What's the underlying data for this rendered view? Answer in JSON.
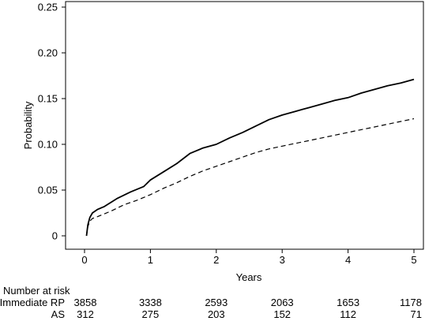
{
  "chart_data": {
    "type": "line",
    "xlabel": "Years",
    "ylabel": "Probability",
    "xlim": [
      0,
      5
    ],
    "ylim": [
      0,
      0.25
    ],
    "x_ticks": [
      "0",
      "1",
      "2",
      "3",
      "4",
      "5"
    ],
    "y_ticks": [
      "0",
      "0.05",
      "0.10",
      "0.15",
      "0.20",
      "0.25"
    ],
    "grid": false,
    "series": [
      {
        "style": "solid",
        "points": [
          [
            0.03,
            0.0
          ],
          [
            0.05,
            0.012
          ],
          [
            0.08,
            0.02
          ],
          [
            0.12,
            0.025
          ],
          [
            0.2,
            0.029
          ],
          [
            0.3,
            0.032
          ],
          [
            0.5,
            0.041
          ],
          [
            0.7,
            0.048
          ],
          [
            0.9,
            0.054
          ],
          [
            1.0,
            0.061
          ],
          [
            1.2,
            0.07
          ],
          [
            1.4,
            0.079
          ],
          [
            1.6,
            0.09
          ],
          [
            1.8,
            0.096
          ],
          [
            2.0,
            0.1
          ],
          [
            2.2,
            0.107
          ],
          [
            2.4,
            0.113
          ],
          [
            2.6,
            0.12
          ],
          [
            2.8,
            0.127
          ],
          [
            3.0,
            0.132
          ],
          [
            3.2,
            0.136
          ],
          [
            3.4,
            0.14
          ],
          [
            3.6,
            0.144
          ],
          [
            3.8,
            0.148
          ],
          [
            4.0,
            0.151
          ],
          [
            4.2,
            0.156
          ],
          [
            4.4,
            0.16
          ],
          [
            4.6,
            0.164
          ],
          [
            4.8,
            0.167
          ],
          [
            5.0,
            0.171
          ]
        ]
      },
      {
        "style": "dashed",
        "points": [
          [
            0.03,
            0.0
          ],
          [
            0.05,
            0.01
          ],
          [
            0.08,
            0.016
          ],
          [
            0.12,
            0.019
          ],
          [
            0.2,
            0.021
          ],
          [
            0.4,
            0.027
          ],
          [
            0.6,
            0.034
          ],
          [
            0.8,
            0.039
          ],
          [
            1.0,
            0.045
          ],
          [
            1.2,
            0.052
          ],
          [
            1.4,
            0.058
          ],
          [
            1.6,
            0.065
          ],
          [
            1.8,
            0.071
          ],
          [
            2.0,
            0.076
          ],
          [
            2.2,
            0.081
          ],
          [
            2.4,
            0.086
          ],
          [
            2.6,
            0.091
          ],
          [
            2.8,
            0.095
          ],
          [
            3.0,
            0.098
          ],
          [
            3.2,
            0.101
          ],
          [
            3.4,
            0.104
          ],
          [
            3.6,
            0.107
          ],
          [
            3.8,
            0.11
          ],
          [
            4.0,
            0.113
          ],
          [
            4.2,
            0.116
          ],
          [
            4.4,
            0.119
          ],
          [
            4.6,
            0.122
          ],
          [
            4.8,
            0.125
          ],
          [
            5.0,
            0.128
          ]
        ]
      }
    ],
    "risk_table": {
      "title": "Number at risk",
      "rows": [
        {
          "label": "Immediate RP",
          "values": [
            "3858",
            "3338",
            "2593",
            "2063",
            "1653",
            "1178"
          ]
        },
        {
          "label": "AS",
          "values": [
            "312",
            "275",
            "203",
            "152",
            "112",
            "71"
          ]
        }
      ]
    }
  }
}
